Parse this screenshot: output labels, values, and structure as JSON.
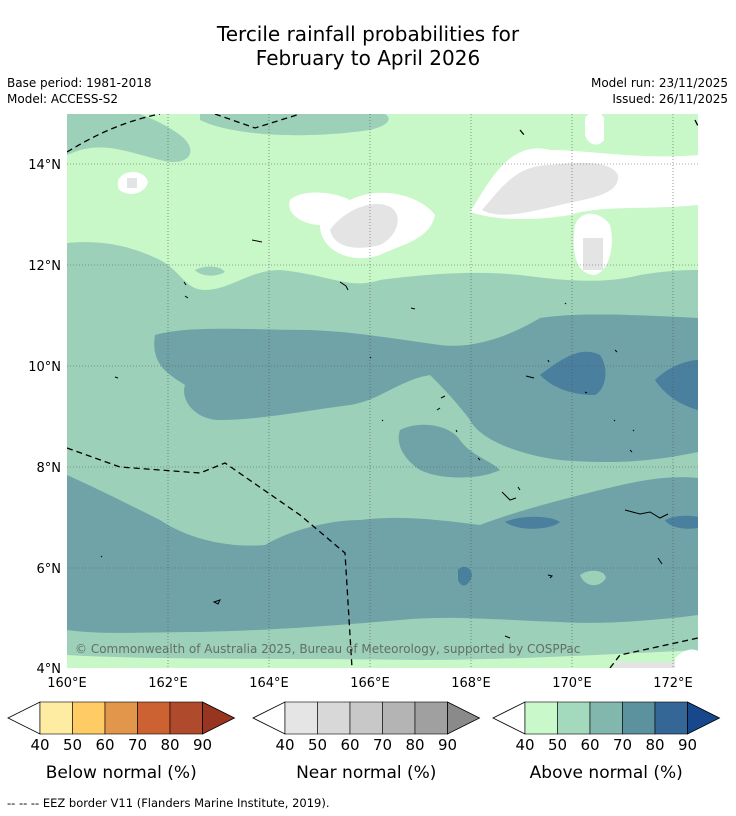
{
  "title": {
    "line1": "Tercile rainfall probabilities for",
    "line2": "February to April 2026"
  },
  "meta": {
    "base_period": "Base period: 1981-2018",
    "model": "Model: ACCESS-S2",
    "model_run": "Model run: 23/11/2025",
    "issued": "Issued: 26/11/2025"
  },
  "map": {
    "lat_labels": [
      "14°N",
      "12°N",
      "10°N",
      "8°N",
      "6°N",
      "4°N"
    ],
    "lon_labels": [
      "160°E",
      "162°E",
      "164°E",
      "166°E",
      "168°E",
      "170°E",
      "172°E"
    ],
    "copyright": "© Commonwealth of Australia 2025, Bureau of Meteorology, supported by COSPPac",
    "colors": {
      "above_50": "#c8f7c8",
      "above_60": "#9cd0b8",
      "above_70": "#6fa3a8",
      "above_80": "#4a7f9e",
      "above_90": "#2f6592",
      "near": "#e4e4e4",
      "white": "#ffffff"
    }
  },
  "colorbars": [
    {
      "name": "below",
      "ticks": [
        "40",
        "50",
        "60",
        "70",
        "80",
        "90"
      ],
      "label": "Below normal (%)",
      "colors": [
        "#fdeca2",
        "#fecb64",
        "#e1964b",
        "#cc6131",
        "#b04a2c",
        "#983521"
      ]
    },
    {
      "name": "near",
      "ticks": [
        "40",
        "50",
        "60",
        "70",
        "80",
        "90"
      ],
      "label": "Near normal (%)",
      "colors": [
        "#e5e5e5",
        "#d8d8d8",
        "#c8c8c8",
        "#b4b4b4",
        "#a0a0a0",
        "#8a8a8a"
      ]
    },
    {
      "name": "above",
      "ticks": [
        "40",
        "50",
        "60",
        "70",
        "80",
        "90"
      ],
      "label": "Above normal (%)",
      "colors": [
        "#c9f8cb",
        "#a3d9bc",
        "#82b7ad",
        "#5c919e",
        "#356796",
        "#17488b"
      ]
    }
  ],
  "footnote": "--  --  -- EEZ border V11 (Flanders Marine Institute, 2019)."
}
